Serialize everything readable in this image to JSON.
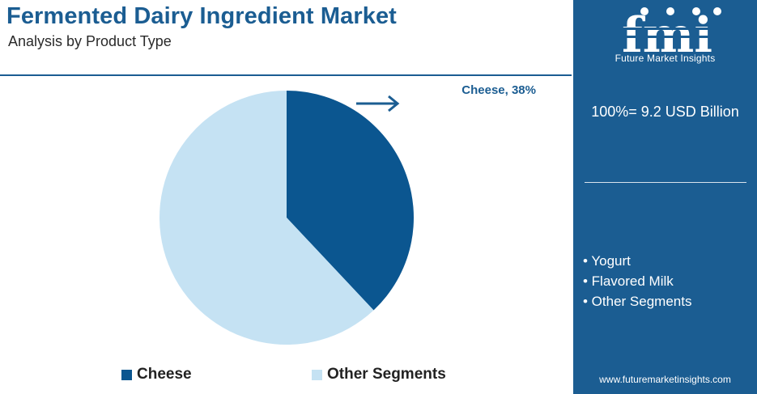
{
  "header": {
    "title": "Fermented Dairy Ingredient Market",
    "subtitle": "Analysis by Product Type"
  },
  "chart_data": {
    "type": "pie",
    "title": "Fermented Dairy Ingredient Market",
    "subtitle": "Analysis by Product Type",
    "slices": [
      {
        "label": "Cheese",
        "value": 38,
        "color": "#0b5690",
        "data_label": "Cheese, 38%"
      },
      {
        "label": "Other Segments",
        "value": 62,
        "color": "#c5e2f3"
      }
    ],
    "legend_placement": "bottom"
  },
  "legend": {
    "items": [
      {
        "label": "Cheese",
        "color": "#0b5690"
      },
      {
        "label": "Other Segments",
        "color": "#c5e2f3"
      }
    ]
  },
  "panel": {
    "background": "#1b5d92",
    "logo_letters": "fmi",
    "logo_tagline": "Future Market Insights",
    "total_label": "100%= 9.2 USD Billion",
    "segments": [
      "• Yogurt",
      "• Flavored Milk",
      "• Other Segments"
    ],
    "website": "www.futuremarketinsights.com"
  }
}
